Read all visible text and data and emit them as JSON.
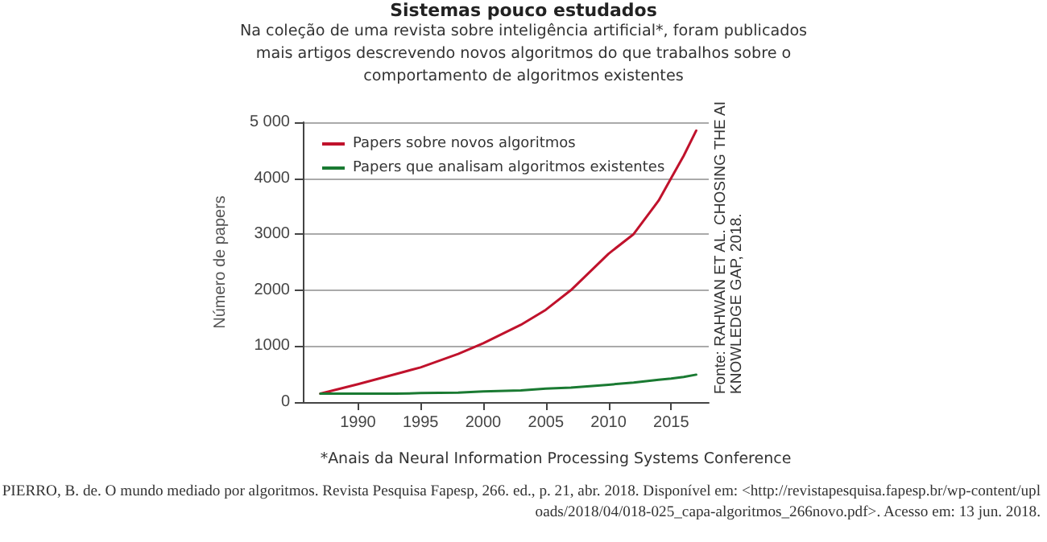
{
  "chart_data": {
    "type": "line",
    "title": "Sistemas pouco estudados",
    "subtitle": "Na coleção de uma revista sobre inteligência artificial*, foram publicados mais artigos descrevendo novos algoritmos do que trabalhos sobre o comportamento de algoritmos existentes",
    "ylabel": "Número de papers",
    "x": [
      1987,
      1990,
      1993,
      1995,
      1998,
      2000,
      2003,
      2005,
      2007,
      2010,
      2012,
      2014,
      2015,
      2016,
      2017
    ],
    "series": [
      {
        "name": "Papers sobre novos algoritmos",
        "color": "#c0122c",
        "values": [
          150,
          320,
          500,
          620,
          860,
          1050,
          1380,
          1650,
          2000,
          2650,
          3000,
          3600,
          4000,
          4400,
          4850
        ]
      },
      {
        "name": "Papers que analisam algoritmos existentes",
        "color": "#1a7a32",
        "values": [
          150,
          150,
          150,
          160,
          170,
          190,
          210,
          240,
          260,
          310,
          350,
          400,
          420,
          450,
          490
        ]
      }
    ],
    "xlim": [
      1985.6,
      2018
    ],
    "xticks": [
      1990,
      1995,
      2000,
      2005,
      2010,
      2015
    ],
    "ylim": [
      0,
      5000
    ],
    "yticks": [
      0,
      1000,
      2000,
      3000,
      4000,
      {
        "value": 5000,
        "label": "5 000"
      }
    ],
    "grid": "y",
    "legend": "top left",
    "marker": "none",
    "line_style": "solid",
    "annotations": [
      "Fonte: RAHWAN ET AL. CHOSING THE AI KNOWLEDGE GAP, 2018.",
      "*Anais da Neural Information Processing Systems Conference",
      "PIERRO, B. de. O mundo mediado por algoritmos. Revista Pesquisa Fapesp, 266. ed., p. 21, abr. 2018. Disponível em: <http://revistapesquisa.fapesp.br/wp-content/uploads/2018/04/018-025_capa-algoritmos_266novo.pdf>. Acesso em: 13 jun. 2018."
    ]
  }
}
